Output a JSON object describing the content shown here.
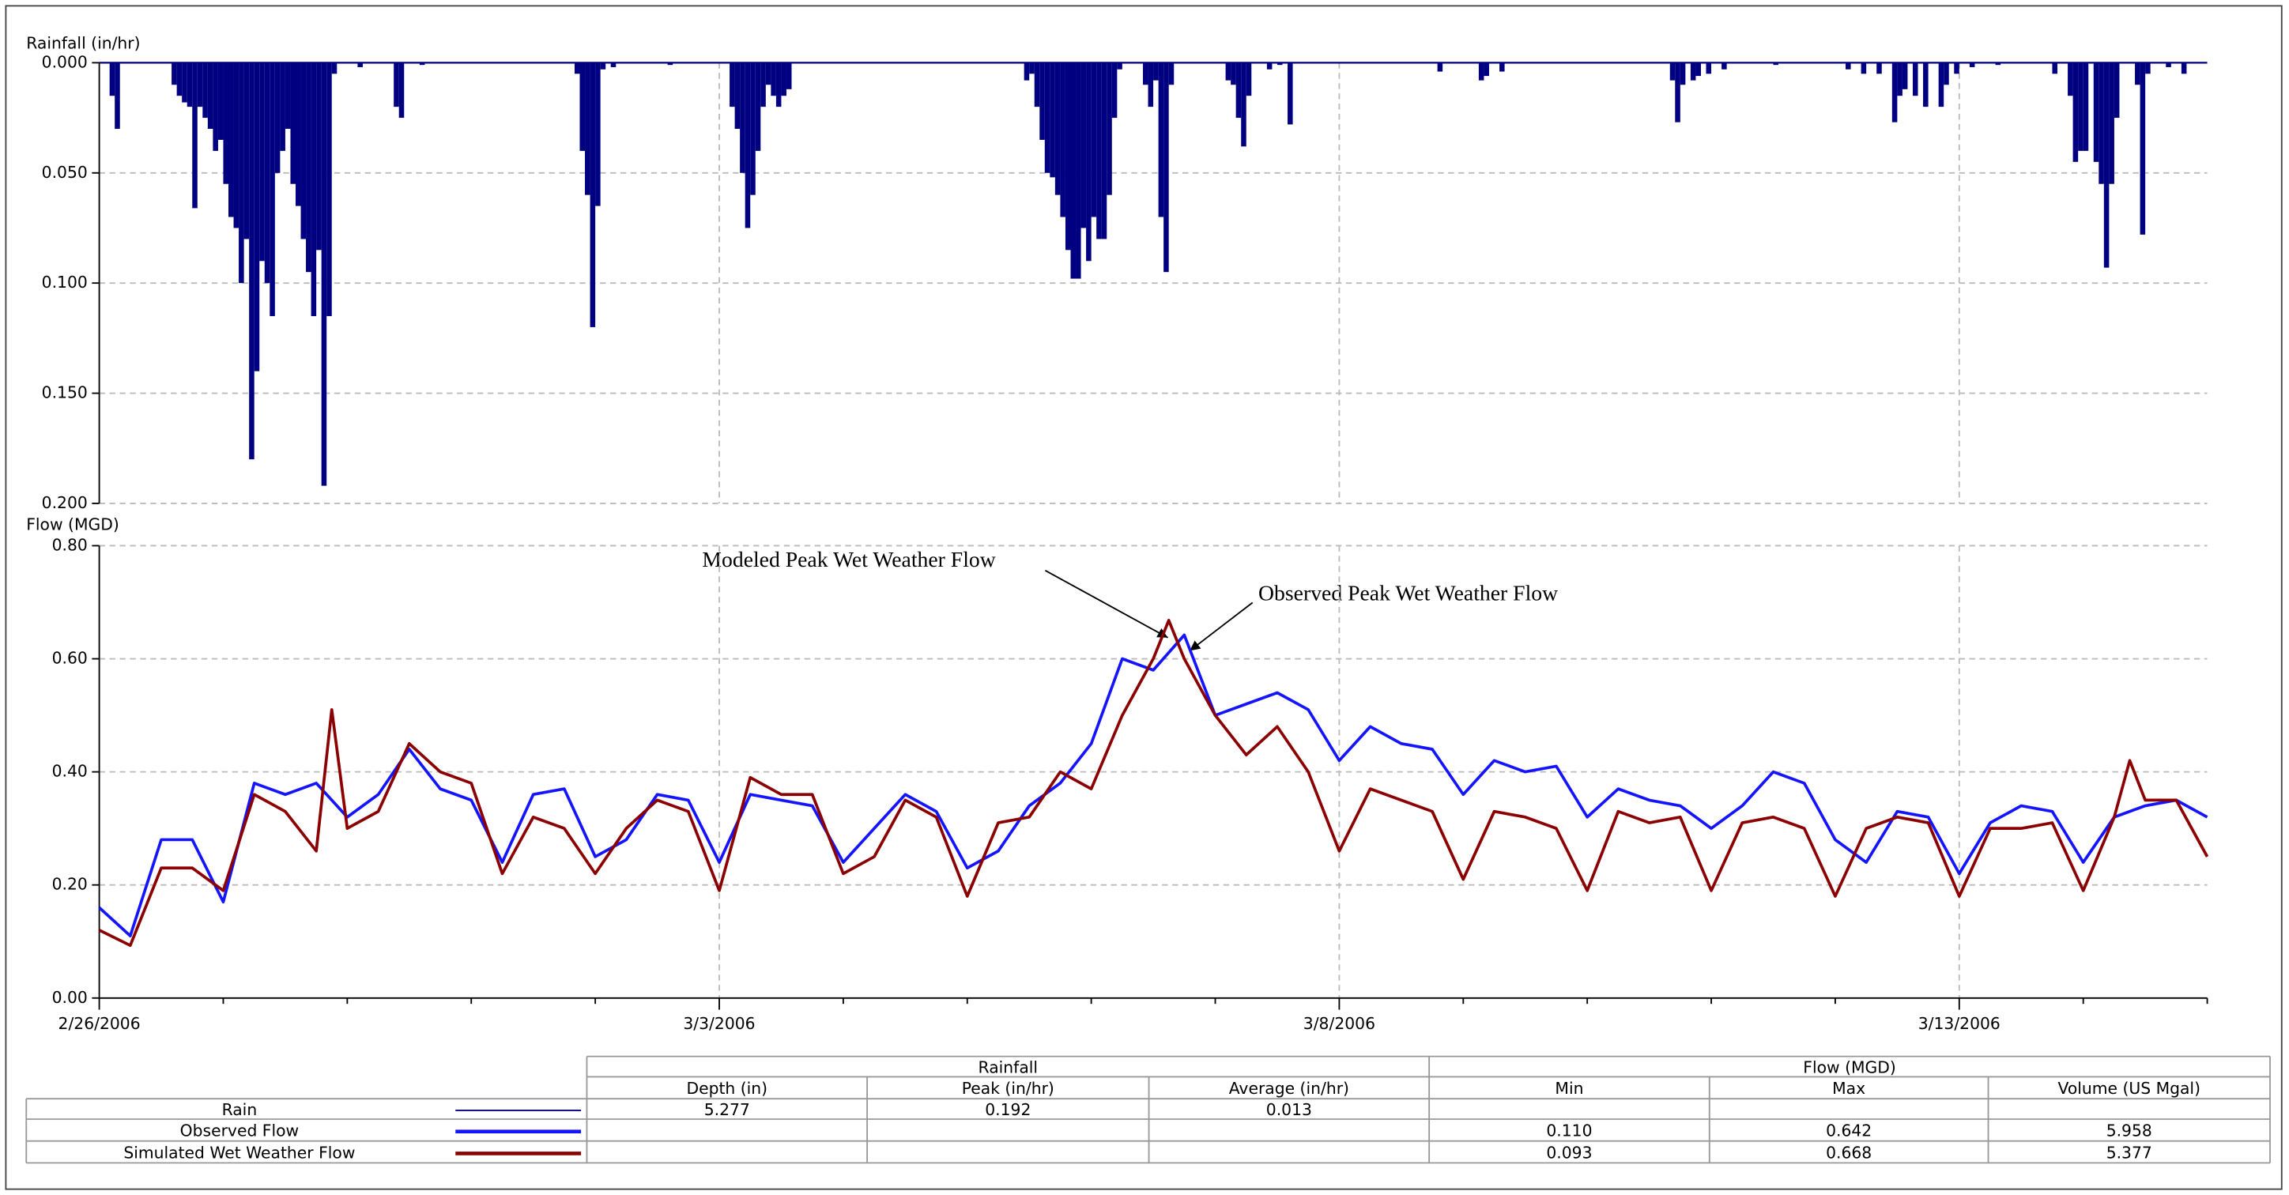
{
  "chart_data": [
    {
      "type": "bar",
      "y_label": "Rainfall (in/hr)",
      "inverted": true,
      "grid": true,
      "xlim": [
        0,
        408
      ],
      "ylim": [
        0,
        0.2
      ],
      "yticks": [
        {
          "value": 0,
          "label": "0.000"
        },
        {
          "value": 0.05,
          "label": "0.050"
        },
        {
          "value": 0.1,
          "label": "0.100"
        },
        {
          "value": 0.15,
          "label": "0.150"
        },
        {
          "value": 0.2,
          "label": "0.200"
        }
      ],
      "x": [
        2,
        3,
        14,
        15,
        16,
        17,
        18,
        19,
        20,
        21,
        22,
        23,
        24,
        25,
        26,
        27,
        28,
        29,
        30,
        31,
        32,
        33,
        34,
        35,
        36,
        37,
        38,
        39,
        40,
        41,
        42,
        43,
        44,
        45,
        50,
        57,
        58,
        62,
        92,
        93,
        94,
        95,
        96,
        97,
        99,
        110,
        122,
        123,
        124,
        125,
        126,
        127,
        128,
        129,
        130,
        131,
        132,
        133,
        179,
        180,
        181,
        182,
        183,
        184,
        185,
        186,
        187,
        188,
        189,
        190,
        191,
        192,
        193,
        194,
        195,
        196,
        197,
        202,
        203,
        204,
        205,
        206,
        207,
        218,
        219,
        220,
        221,
        222,
        226,
        228,
        230,
        259,
        267,
        268,
        271,
        304,
        305,
        306,
        308,
        309,
        311,
        314,
        324,
        338,
        341,
        344,
        347,
        348,
        349,
        351,
        353,
        356,
        357,
        359,
        362,
        367,
        378,
        381,
        382,
        383,
        384,
        386,
        387,
        388,
        389,
        390,
        394,
        395,
        396,
        400,
        403
      ],
      "series": [
        {
          "name": "Rain",
          "color": "#000080",
          "values": [
            0.015,
            0.03,
            0.01,
            0.015,
            0.018,
            0.02,
            0.066,
            0.02,
            0.025,
            0.03,
            0.04,
            0.035,
            0.055,
            0.07,
            0.075,
            0.1,
            0.08,
            0.18,
            0.14,
            0.09,
            0.1,
            0.115,
            0.05,
            0.04,
            0.03,
            0.055,
            0.065,
            0.08,
            0.095,
            0.115,
            0.085,
            0.192,
            0.115,
            0.005,
            0.002,
            0.02,
            0.025,
            0.001,
            0.005,
            0.04,
            0.06,
            0.12,
            0.065,
            0.003,
            0.002,
            0.001,
            0.02,
            0.03,
            0.05,
            0.075,
            0.06,
            0.04,
            0.02,
            0.01,
            0.015,
            0.02,
            0.015,
            0.012,
            0.008,
            0.005,
            0.02,
            0.035,
            0.05,
            0.052,
            0.06,
            0.07,
            0.085,
            0.098,
            0.098,
            0.075,
            0.09,
            0.07,
            0.08,
            0.08,
            0.06,
            0.025,
            0.003,
            0.01,
            0.02,
            0.008,
            0.07,
            0.095,
            0.01,
            0.008,
            0.01,
            0.025,
            0.038,
            0.015,
            0.003,
            0.001,
            0.028,
            0.004,
            0.008,
            0.006,
            0.004,
            0.008,
            0.027,
            0.01,
            0.008,
            0.006,
            0.005,
            0.003,
            0.001,
            0.003,
            0.005,
            0.005,
            0.027,
            0.015,
            0.012,
            0.015,
            0.02,
            0.02,
            0.01,
            0.005,
            0.002,
            0.001,
            0.005,
            0.015,
            0.045,
            0.04,
            0.04,
            0.045,
            0.055,
            0.093,
            0.055,
            0.025,
            0.01,
            0.078,
            0.005,
            0.002,
            0.005
          ]
        }
      ]
    },
    {
      "type": "line",
      "y_label": "Flow (MGD)",
      "grid": true,
      "xlim": [
        0,
        408
      ],
      "ylim": [
        0,
        0.8
      ],
      "xticks": [
        {
          "value": 0,
          "label": "2/26/2006"
        },
        {
          "value": 120,
          "label": "3/3/2006"
        },
        {
          "value": 240,
          "label": "3/8/2006"
        },
        {
          "value": 360,
          "label": "3/13/2006"
        }
      ],
      "xminorticks": [
        24,
        48,
        72,
        96,
        144,
        168,
        192,
        216,
        264,
        288,
        312,
        336,
        384,
        408
      ],
      "yticks": [
        {
          "value": 0,
          "label": "0.00"
        },
        {
          "value": 0.2,
          "label": "0.20"
        },
        {
          "value": 0.4,
          "label": "0.40"
        },
        {
          "value": 0.6,
          "label": "0.60"
        },
        {
          "value": 0.8,
          "label": "0.80"
        }
      ],
      "series": [
        {
          "name": "Observed Flow",
          "color": "#1414ff",
          "x": [
            0,
            6,
            12,
            18,
            24,
            30,
            36,
            42,
            48,
            54,
            60,
            66,
            72,
            78,
            84,
            90,
            96,
            102,
            108,
            114,
            120,
            126,
            132,
            138,
            144,
            150,
            156,
            162,
            168,
            174,
            180,
            186,
            192,
            198,
            204,
            210,
            216,
            222,
            228,
            234,
            240,
            246,
            252,
            258,
            264,
            270,
            276,
            282,
            288,
            294,
            300,
            306,
            312,
            318,
            324,
            330,
            336,
            342,
            348,
            354,
            360,
            366,
            372,
            378,
            384,
            390,
            396,
            402,
            408
          ],
          "values": [
            0.16,
            0.11,
            0.28,
            0.28,
            0.17,
            0.38,
            0.36,
            0.38,
            0.32,
            0.36,
            0.44,
            0.37,
            0.35,
            0.24,
            0.36,
            0.37,
            0.25,
            0.28,
            0.36,
            0.35,
            0.24,
            0.36,
            0.35,
            0.34,
            0.24,
            0.3,
            0.36,
            0.33,
            0.23,
            0.26,
            0.34,
            0.38,
            0.45,
            0.6,
            0.58,
            0.642,
            0.5,
            0.52,
            0.54,
            0.51,
            0.42,
            0.48,
            0.45,
            0.44,
            0.36,
            0.42,
            0.4,
            0.41,
            0.32,
            0.37,
            0.35,
            0.34,
            0.3,
            0.34,
            0.4,
            0.38,
            0.28,
            0.24,
            0.33,
            0.32,
            0.22,
            0.31,
            0.34,
            0.33,
            0.24,
            0.32,
            0.34,
            0.35,
            0.32
          ]
        },
        {
          "name": "Simulated Wet Weather Flow",
          "color": "#8b0000",
          "x": [
            0,
            6,
            12,
            18,
            24,
            30,
            36,
            42,
            45,
            48,
            54,
            60,
            66,
            72,
            78,
            84,
            90,
            96,
            102,
            108,
            114,
            120,
            126,
            132,
            138,
            144,
            150,
            156,
            162,
            168,
            174,
            180,
            186,
            192,
            198,
            204,
            207,
            210,
            216,
            222,
            228,
            234,
            240,
            246,
            252,
            258,
            264,
            270,
            276,
            282,
            288,
            294,
            300,
            306,
            312,
            318,
            324,
            330,
            336,
            342,
            348,
            354,
            360,
            366,
            372,
            378,
            384,
            390,
            393,
            396,
            402,
            408
          ],
          "values": [
            0.12,
            0.093,
            0.23,
            0.23,
            0.19,
            0.36,
            0.33,
            0.26,
            0.51,
            0.3,
            0.33,
            0.45,
            0.4,
            0.38,
            0.22,
            0.32,
            0.3,
            0.22,
            0.3,
            0.35,
            0.33,
            0.19,
            0.39,
            0.36,
            0.36,
            0.22,
            0.25,
            0.35,
            0.32,
            0.18,
            0.31,
            0.32,
            0.4,
            0.37,
            0.5,
            0.6,
            0.668,
            0.6,
            0.5,
            0.43,
            0.48,
            0.4,
            0.26,
            0.37,
            0.35,
            0.33,
            0.21,
            0.33,
            0.32,
            0.3,
            0.19,
            0.33,
            0.31,
            0.32,
            0.19,
            0.31,
            0.32,
            0.3,
            0.18,
            0.3,
            0.32,
            0.31,
            0.18,
            0.3,
            0.3,
            0.31,
            0.19,
            0.32,
            0.42,
            0.35,
            0.35,
            0.25
          ]
        }
      ],
      "annotations": [
        {
          "text": "Modeled Peak Wet Weather Flow"
        },
        {
          "text": "Observed Peak Wet Weather Flow"
        }
      ]
    }
  ],
  "summary_table": {
    "groups": [
      "Rainfall",
      "Flow (MGD)"
    ],
    "columns": [
      "Depth (in)",
      "Peak (in/hr)",
      "Average (in/hr)",
      "Min",
      "Max",
      "Volume (US Mgal)"
    ],
    "rows": [
      [
        "5.277",
        "0.192",
        "0.013",
        null,
        null,
        null
      ],
      [
        null,
        null,
        null,
        "0.110",
        "0.642",
        "5.958"
      ],
      [
        null,
        null,
        null,
        "0.093",
        "0.668",
        "5.377"
      ]
    ]
  }
}
